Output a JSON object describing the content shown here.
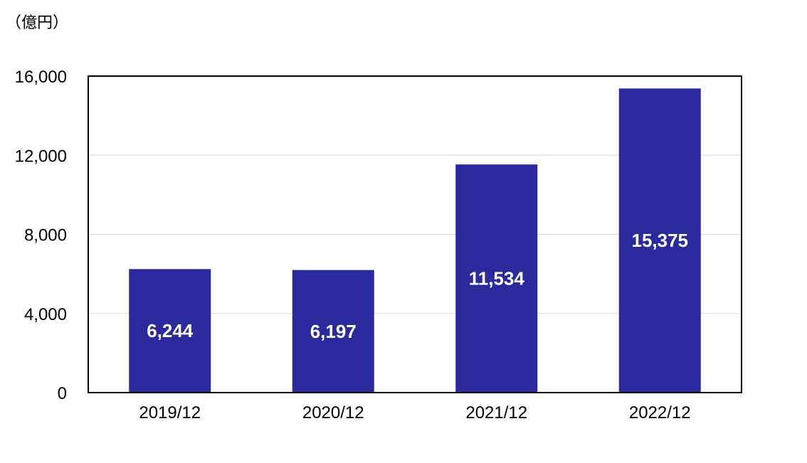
{
  "chart_data": {
    "type": "bar",
    "unit_label": "（億円）",
    "categories": [
      "2019/12",
      "2020/12",
      "2021/12",
      "2022/12"
    ],
    "values": [
      6244,
      6197,
      11534,
      15375
    ],
    "value_labels": [
      "6,244",
      "6,197",
      "11,534",
      "15,375"
    ],
    "ylim": [
      0,
      16000
    ],
    "yticks": [
      0,
      4000,
      8000,
      12000,
      16000
    ],
    "ytick_labels": [
      "0",
      "4,000",
      "8,000",
      "12,000",
      "16,000"
    ],
    "grid": true,
    "bar_color": "#2B2A9D",
    "grid_color": "#d9d9d9"
  }
}
